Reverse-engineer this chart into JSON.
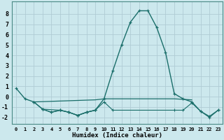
{
  "xlabel": "Humidex (Indice chaleur)",
  "background_color": "#cce8ed",
  "grid_color": "#b0ccd4",
  "line_color": "#1a6e6a",
  "xlim": [
    -0.5,
    23.5
  ],
  "ylim": [
    -2.6,
    9.2
  ],
  "yticks": [
    -2,
    -1,
    0,
    1,
    2,
    3,
    4,
    5,
    6,
    7,
    8
  ],
  "xticks": [
    0,
    1,
    2,
    3,
    4,
    5,
    6,
    7,
    8,
    9,
    10,
    11,
    12,
    13,
    14,
    15,
    16,
    17,
    18,
    19,
    20,
    21,
    22,
    23
  ],
  "main_x": [
    0,
    1,
    2,
    3,
    4,
    5,
    6,
    7,
    8,
    9,
    10,
    11,
    12,
    13,
    14,
    15,
    16,
    17,
    18,
    19,
    20,
    21,
    22,
    23
  ],
  "main_y": [
    0.8,
    -0.2,
    -0.5,
    -1.2,
    -1.5,
    -1.3,
    -1.5,
    -1.8,
    -1.5,
    -1.3,
    -0.2,
    2.5,
    5.0,
    7.2,
    8.3,
    8.3,
    6.7,
    4.3,
    0.3,
    -0.2,
    -0.5,
    -1.4,
    -1.9,
    -1.3
  ],
  "flat1_x": [
    2,
    9,
    10,
    18,
    20
  ],
  "flat1_y": [
    -0.5,
    -0.3,
    -0.2,
    -0.2,
    -0.3
  ],
  "lower_x": [
    2,
    3,
    5,
    6,
    7,
    8,
    9,
    10,
    11,
    18,
    19,
    20,
    21,
    22,
    23
  ],
  "lower_y": [
    -0.5,
    -1.2,
    -1.3,
    -1.5,
    -1.8,
    -1.5,
    -1.3,
    -0.5,
    -1.3,
    -1.3,
    -1.3,
    -0.6,
    -1.4,
    -2.0,
    -1.3
  ],
  "mid_x": [
    3,
    4,
    5,
    6,
    7,
    8,
    9
  ],
  "mid_y": [
    -1.2,
    -1.5,
    -1.3,
    -1.5,
    -1.8,
    -1.5,
    -1.3
  ]
}
